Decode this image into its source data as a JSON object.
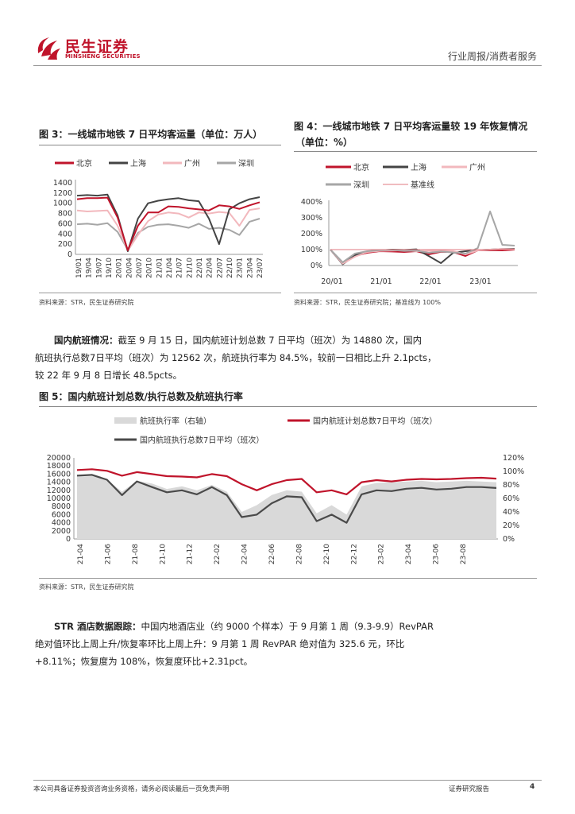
{
  "header": {
    "logo_cn": "民生证券",
    "logo_en": "MINSHENG SECURITIES",
    "section": "行业周报/消费者服务",
    "brand_color": "#c0142b"
  },
  "fig3": {
    "title": "图 3：一线城市地铁 7 日平均客运量（单位：万人）",
    "source": "资料来源：STR，民生证券研究院",
    "chart_data": {
      "type": "line",
      "title": "图 3：一线城市地铁 7 日平均客运量（单位：万人）",
      "ylabel": "",
      "xlabel": "",
      "ylim": [
        0,
        1400
      ],
      "yticks": [
        0,
        200,
        400,
        600,
        800,
        1000,
        1200,
        1400
      ],
      "xticks": [
        "19/01",
        "19/04",
        "19/07",
        "19/10",
        "20/01",
        "20/04",
        "20/07",
        "20/10",
        "21/01",
        "21/04",
        "21/07",
        "21/10",
        "22/01",
        "22/04",
        "22/07",
        "22/10",
        "23/01",
        "23/04",
        "23/07"
      ],
      "legend_position": "top",
      "series": [
        {
          "name": "北京",
          "color": "#c0142b",
          "values": [
            1080,
            1100,
            1100,
            1110,
            720,
            80,
            560,
            820,
            820,
            940,
            930,
            900,
            880,
            860,
            960,
            940,
            890,
            960,
            1020
          ]
        },
        {
          "name": "上海",
          "color": "#444444",
          "values": [
            1150,
            1160,
            1150,
            1170,
            760,
            60,
            700,
            1000,
            1050,
            1080,
            1100,
            1060,
            1040,
            700,
            200,
            880,
            1000,
            1080,
            1120
          ]
        },
        {
          "name": "广州",
          "color": "#f2b8bd",
          "values": [
            860,
            840,
            850,
            860,
            560,
            70,
            380,
            650,
            780,
            820,
            800,
            720,
            820,
            800,
            830,
            810,
            560,
            870,
            900
          ]
        },
        {
          "name": "深圳",
          "color": "#a6a6a6",
          "values": [
            590,
            600,
            580,
            610,
            440,
            90,
            420,
            540,
            580,
            590,
            560,
            520,
            600,
            500,
            520,
            480,
            380,
            640,
            700
          ]
        }
      ]
    }
  },
  "fig4": {
    "title_line1": "图 4：一线城市地铁 7 日平均客运量较 19 年恢复情况",
    "title_line2": "（单位：%）",
    "source": "资料来源：STR，民生证券研究院；基准线为 100%",
    "chart_data": {
      "type": "line",
      "title": "图 4：一线城市地铁 7 日平均客运量较 19 年恢复情况（单位：%）",
      "ylim": [
        0,
        400
      ],
      "yticks": [
        "0%",
        "100%",
        "200%",
        "300%",
        "400%"
      ],
      "xticks": [
        "20/01",
        "21/01",
        "22/01",
        "23/01"
      ],
      "legend_position": "top",
      "series": [
        {
          "name": "北京",
          "color": "#c0142b",
          "values": [
            100,
            10,
            60,
            80,
            90,
            88,
            85,
            90,
            70,
            86,
            84,
            60,
            95,
            96,
            95,
            100
          ]
        },
        {
          "name": "上海",
          "color": "#444444",
          "values": [
            100,
            8,
            65,
            88,
            95,
            100,
            98,
            102,
            60,
            15,
            80,
            90,
            96,
            100,
            104,
            105
          ]
        },
        {
          "name": "广州",
          "color": "#f2b8bd",
          "values": [
            100,
            12,
            55,
            85,
            92,
            94,
            96,
            90,
            92,
            94,
            90,
            70,
            95,
            100,
            104,
            102
          ]
        },
        {
          "name": "深圳",
          "color": "#a6a6a6",
          "values": [
            100,
            20,
            75,
            90,
            96,
            98,
            92,
            94,
            80,
            88,
            82,
            75,
            110,
            340,
            130,
            125
          ]
        },
        {
          "name": "基准线",
          "color": "#e07a80",
          "values": [
            100,
            100,
            100,
            100,
            100,
            100,
            100,
            100,
            100,
            100,
            100,
            100,
            100,
            100,
            100,
            100
          ]
        }
      ]
    }
  },
  "para1": {
    "label": "国内航班情况：",
    "text": "截至 9 月 15 日，国内航班计划总数 7 日平均（班次）为 14880 次，国内航班执行总数7日平均（班次）为 12562 次，航班执行率为 84.5%，较前一日相比上升 2.1pcts，较 22 年 9 月 8 日增长 48.5pcts。",
    "line1": "截至 9 月 15 日，国内航班计划总数 7 日平均（班次）为 14880 次，国内",
    "line2": "航班执行总数7日平均（班次）为 12562 次，航班执行率为 84.5%，较前一日相比上升 2.1pcts，",
    "line3": "较 22 年 9 月 8 日增长 48.5pcts。"
  },
  "fig5": {
    "title": "图 5：国内航班计划总数/执行总数及航班执行率",
    "source": "资料来源：STR，民生证券研究院",
    "chart_data": {
      "type": "line",
      "title": "图 5：国内航班计划总数/执行总数及航班执行率",
      "ylim": [
        0,
        20000
      ],
      "y2lim": [
        0,
        1.2
      ],
      "yticks": [
        0,
        2000,
        4000,
        6000,
        8000,
        10000,
        12000,
        14000,
        16000,
        18000,
        20000
      ],
      "y2ticks": [
        "0%",
        "20%",
        "40%",
        "60%",
        "80%",
        "100%",
        "120%"
      ],
      "xticks": [
        "21-04",
        "21-06",
        "21-08",
        "21-10",
        "21-12",
        "22-02",
        "22-04",
        "22-06",
        "22-08",
        "22-10",
        "22-12",
        "23-02",
        "23-04",
        "23-06",
        "23-08"
      ],
      "legend_position": "top",
      "series": [
        {
          "name": "航班执行率（右轴）",
          "color": "#d9d9d9",
          "axis": "right",
          "values": [
            0.92,
            0.93,
            0.88,
            0.7,
            0.86,
            0.82,
            0.74,
            0.78,
            0.72,
            0.8,
            0.7,
            0.4,
            0.5,
            0.65,
            0.72,
            0.7,
            0.38,
            0.5,
            0.36,
            0.78,
            0.83,
            0.84,
            0.85,
            0.86,
            0.84,
            0.85,
            0.86,
            0.85,
            0.84
          ]
        },
        {
          "name": "国内航班计划总数7日平均（班次）",
          "color": "#c0142b",
          "axis": "left",
          "values": [
            17000,
            17200,
            16800,
            15600,
            16500,
            16000,
            15500,
            15400,
            15200,
            16000,
            15500,
            13500,
            12000,
            13500,
            14500,
            14800,
            11500,
            12000,
            11000,
            14000,
            14500,
            14200,
            14600,
            14800,
            14700,
            14800,
            15000,
            15100,
            14880
          ]
        },
        {
          "name": "国内航班执行总数7日平均（班次）",
          "color": "#4a4a4a",
          "axis": "left",
          "values": [
            15600,
            15800,
            14600,
            10800,
            14200,
            12800,
            11500,
            12000,
            11000,
            12800,
            10800,
            5400,
            6000,
            8800,
            10500,
            10300,
            4400,
            6000,
            4000,
            11000,
            12000,
            11800,
            12400,
            12600,
            12200,
            12400,
            12800,
            12800,
            12562
          ]
        }
      ]
    }
  },
  "para2": {
    "label": "STR 酒店数据跟踪：",
    "line1": "中国内地酒店业（约 9000 个样本）于 9 月第 1 周（9.3-9.9）RevPAR",
    "line2": "绝对值环比上周上升/恢复率环比上周上升：9 月第 1 周 RevPAR 绝对值为 325.6 元，环比",
    "line3": "+8.11%；恢复度为 108%，恢复度环比+2.31pct。"
  },
  "footer": {
    "disclaimer": "本公司具备证券投资咨询业务资格，请务必阅读最后一页免责声明",
    "report_type": "证券研究报告",
    "page": "4"
  }
}
